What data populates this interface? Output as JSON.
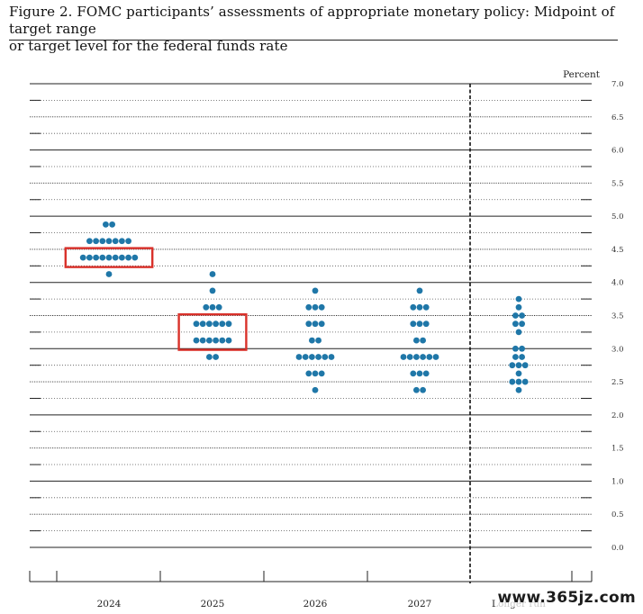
{
  "caption": {
    "line1": "Figure 2.  FOMC participants’ assessments of appropriate monetary policy:  Midpoint of target range",
    "line2": "or target level for the federal funds rate"
  },
  "watermark": "www.365jz.com",
  "chart_data": {
    "type": "scatter",
    "subtype": "dot-plot",
    "title": "",
    "xlabel": "",
    "ylabel": "Percent",
    "ylim": [
      0.0,
      7.0
    ],
    "yticks": [
      "0.0",
      "0.5",
      "1.0",
      "1.5",
      "2.0",
      "2.5",
      "3.0",
      "3.5",
      "4.0",
      "4.5",
      "5.0",
      "5.5",
      "6.0",
      "6.5",
      "7.0"
    ],
    "categories": [
      "2024",
      "2025",
      "2026",
      "2027",
      "Longer run"
    ],
    "dot_color": "#1f77a8",
    "highlight_color": "#d9312a",
    "dots": [
      [
        {
          "rate": 4.875,
          "count": 2
        },
        {
          "rate": 4.625,
          "count": 7
        },
        {
          "rate": 4.375,
          "count": 9
        },
        {
          "rate": 4.125,
          "count": 1
        }
      ],
      [
        {
          "rate": 4.125,
          "count": 1
        },
        {
          "rate": 3.875,
          "count": 1
        },
        {
          "rate": 3.625,
          "count": 3
        },
        {
          "rate": 3.375,
          "count": 6
        },
        {
          "rate": 3.125,
          "count": 6
        },
        {
          "rate": 2.875,
          "count": 2
        }
      ],
      [
        {
          "rate": 3.875,
          "count": 1
        },
        {
          "rate": 3.625,
          "count": 3
        },
        {
          "rate": 3.375,
          "count": 3
        },
        {
          "rate": 3.125,
          "count": 2
        },
        {
          "rate": 2.875,
          "count": 6
        },
        {
          "rate": 2.625,
          "count": 3
        },
        {
          "rate": 2.375,
          "count": 1
        }
      ],
      [
        {
          "rate": 3.875,
          "count": 1
        },
        {
          "rate": 3.625,
          "count": 3
        },
        {
          "rate": 3.375,
          "count": 3
        },
        {
          "rate": 3.125,
          "count": 2
        },
        {
          "rate": 2.875,
          "count": 6
        },
        {
          "rate": 2.625,
          "count": 3
        },
        {
          "rate": 2.375,
          "count": 2
        }
      ],
      [
        {
          "rate": 3.75,
          "count": 1
        },
        {
          "rate": 3.625,
          "count": 1
        },
        {
          "rate": 3.5,
          "count": 2
        },
        {
          "rate": 3.375,
          "count": 2
        },
        {
          "rate": 3.25,
          "count": 1
        },
        {
          "rate": 3.0,
          "count": 2
        },
        {
          "rate": 2.875,
          "count": 2
        },
        {
          "rate": 2.75,
          "count": 3
        },
        {
          "rate": 2.625,
          "count": 1
        },
        {
          "rate": 2.5,
          "count": 3
        },
        {
          "rate": 2.375,
          "count": 1
        }
      ]
    ],
    "highlights": [
      {
        "category": "2024",
        "rates": [
          4.375
        ]
      },
      {
        "category": "2025",
        "rates": [
          3.375,
          3.125
        ]
      }
    ],
    "separator_after": "2027"
  }
}
